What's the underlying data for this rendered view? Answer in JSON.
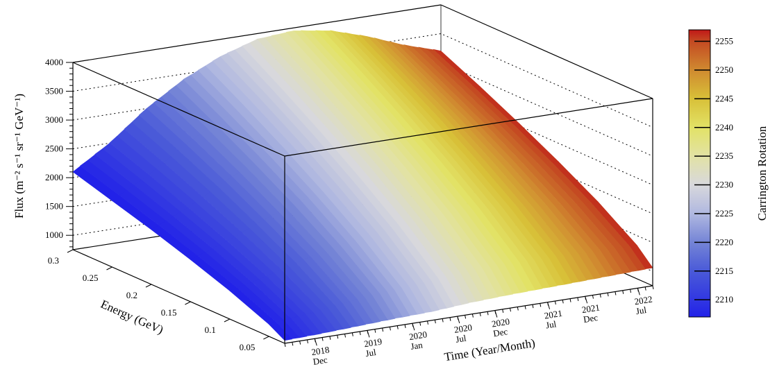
{
  "chart_data": {
    "type": "surface",
    "zlabel": "Flux (m⁻² s⁻¹ sr⁻¹ GeV⁻¹)",
    "ylabel": "Energy (GeV)",
    "xlabel": "Time (Year/Month)",
    "colorbar_label": "Carrington Rotation",
    "zlim": [
      750,
      4000
    ],
    "energy_range": [
      0.03,
      0.3
    ],
    "time_range": [
      "2018 Aug",
      "2022 Sep"
    ],
    "colorbar_range": [
      2207,
      2257
    ],
    "z_ticks": [
      "1000",
      "1500",
      "2000",
      "2500",
      "3000",
      "3500",
      "4000"
    ],
    "energy_ticks": [
      "0.3",
      "0.25",
      "0.2",
      "0.15",
      "0.1",
      "0.05"
    ],
    "time_ticks": [
      {
        "year": "2018",
        "month": "Dec",
        "months_from_start": 4
      },
      {
        "year": "2019",
        "month": "Jul",
        "months_from_start": 11
      },
      {
        "year": "2020",
        "month": "Jan",
        "months_from_start": 17
      },
      {
        "year": "2020",
        "month": "Jul",
        "months_from_start": 23
      },
      {
        "year": "2020",
        "month": "Dec",
        "months_from_start": 28
      },
      {
        "year": "2021",
        "month": "Jul",
        "months_from_start": 35
      },
      {
        "year": "2021",
        "month": "Dec",
        "months_from_start": 40
      },
      {
        "year": "2022",
        "month": "Jul",
        "months_from_start": 47
      }
    ],
    "time_span_months": 49,
    "colorbar_ticks": [
      "2210",
      "2215",
      "2220",
      "2225",
      "2230",
      "2235",
      "2240",
      "2245",
      "2250",
      "2255"
    ],
    "colormap": [
      {
        "v": 2207,
        "c": "#2222e8"
      },
      {
        "v": 2215,
        "c": "#4a5ad8"
      },
      {
        "v": 2220,
        "c": "#7484d6"
      },
      {
        "v": 2225,
        "c": "#b0b8e0"
      },
      {
        "v": 2230,
        "c": "#d8d8dc"
      },
      {
        "v": 2235,
        "c": "#e2e2a4"
      },
      {
        "v": 2240,
        "c": "#e2e266"
      },
      {
        "v": 2245,
        "c": "#d8c038"
      },
      {
        "v": 2250,
        "c": "#d08a30"
      },
      {
        "v": 2255,
        "c": "#c44a22"
      },
      {
        "v": 2257,
        "c": "#c01818"
      }
    ],
    "energies": [
      0.3,
      0.25,
      0.2,
      0.15,
      0.1,
      0.05,
      0.03
    ],
    "rotations": [
      2207,
      2212,
      2217,
      2222,
      2227,
      2232,
      2237,
      2242,
      2247,
      2252,
      2257
    ],
    "flux": [
      [
        2100,
        1900,
        1700,
        1480,
        1240,
        960,
        800
      ],
      [
        2500,
        2250,
        1980,
        1700,
        1390,
        1030,
        820
      ],
      [
        3000,
        2680,
        2340,
        1970,
        1580,
        1120,
        850
      ],
      [
        3400,
        3020,
        2620,
        2200,
        1730,
        1200,
        880
      ],
      [
        3700,
        3280,
        2840,
        2360,
        1850,
        1250,
        900
      ],
      [
        3900,
        3460,
        2990,
        2490,
        1950,
        1320,
        950
      ],
      [
        3950,
        3500,
        3030,
        2530,
        1990,
        1350,
        980
      ],
      [
        3850,
        3420,
        2970,
        2490,
        1970,
        1360,
        1000
      ],
      [
        3650,
        3250,
        2840,
        2390,
        1910,
        1350,
        1020
      ],
      [
        3400,
        3040,
        2670,
        2270,
        1840,
        1340,
        1040
      ],
      [
        3200,
        2880,
        2540,
        2180,
        1790,
        1330,
        1060
      ]
    ]
  }
}
